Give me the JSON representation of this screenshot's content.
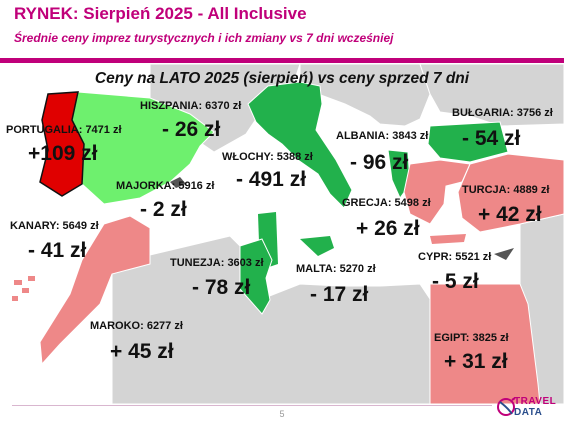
{
  "header": {
    "title": "RYNEK: Sierpień 2025 - All Inclusive",
    "subtitle": "Średnie ceny imprez turystycznych i ich zmiany vs 7 dni wcześniej"
  },
  "map": {
    "title": "Ceny na LATO 2025 (sierpień) vs ceny sprzed 7 dni",
    "legend_colors": {
      "price_decrease": "#22b14c",
      "price_decrease_light": "#6ef06e",
      "price_increase": "#ee8888",
      "price_increase_strong": "#e00000",
      "other_land": "#d4d4d4",
      "sea": "#ffffff"
    },
    "destinations": [
      {
        "id": "portugalia",
        "label": "PORTUGALIA: 7471 zł",
        "change": "+109 zł",
        "color": "#e00000"
      },
      {
        "id": "hiszpania",
        "label": "HISZPANIA: 6370 zł",
        "change": "- 26 zł",
        "color": "#6ef06e"
      },
      {
        "id": "majorka",
        "label": "MAJORKA: 5916 zł",
        "change": "- 2 zł",
        "color": "#22b14c"
      },
      {
        "id": "wlochy",
        "label": "WŁOCHY: 5388 zł",
        "change": "- 491 zł",
        "color": "#22b14c"
      },
      {
        "id": "albania",
        "label": "ALBANIA: 3843 zł",
        "change": "- 96 zł",
        "color": "#22b14c"
      },
      {
        "id": "bulgaria",
        "label": "BUŁGARIA: 3756 zł",
        "change": "- 54 zł",
        "color": "#22b14c"
      },
      {
        "id": "turcja",
        "label": "TURCJA: 4889 zł",
        "change": "+ 42 zł",
        "color": "#ee8888"
      },
      {
        "id": "grecja",
        "label": "GRECJA: 5498 zł",
        "change": "+ 26 zł",
        "color": "#ee8888"
      },
      {
        "id": "kanary",
        "label": "KANARY: 5649 zł",
        "change": "- 41 zł",
        "color": "#22b14c"
      },
      {
        "id": "tunezja",
        "label": "TUNEZJA: 3603 zł",
        "change": "- 78 zł",
        "color": "#22b14c"
      },
      {
        "id": "malta",
        "label": "MALTA: 5270 zł",
        "change": "- 17 zł",
        "color": "#22b14c"
      },
      {
        "id": "cypr",
        "label": "CYPR: 5521 zł",
        "change": "- 5 zł",
        "color": "#22b14c"
      },
      {
        "id": "maroko",
        "label": "MAROKO: 6277 zł",
        "change": "+ 45 zł",
        "color": "#ee8888"
      },
      {
        "id": "egipt",
        "label": "EGIPT: 3825 zł",
        "change": "+ 31 zł",
        "color": "#ee8888"
      }
    ]
  },
  "footer": {
    "page_number": "5",
    "logo_text_top": "TRAVEL",
    "logo_text_bottom": "DATA"
  }
}
